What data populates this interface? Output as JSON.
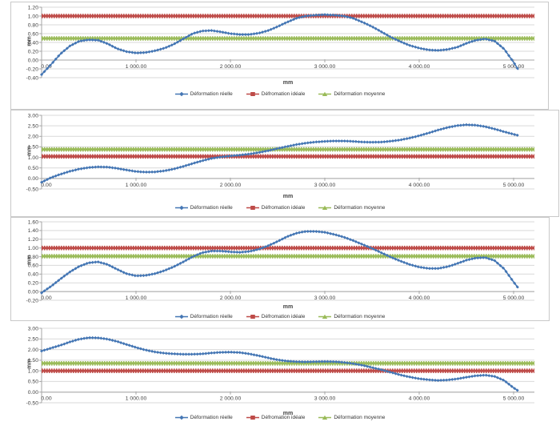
{
  "app": {
    "description": "Four stacked deformation line charts (réelle / idéale / moyenne) over a 0–5000 mm span"
  },
  "chart_data": [
    {
      "type": "line",
      "title": "",
      "xlabel": "mm",
      "ylabel": "mm",
      "grid": true,
      "legend_position": "bottom",
      "xlim": [
        0,
        5220
      ],
      "ylim": [
        -0.4,
        1.2
      ],
      "x_ticks": [
        "0.00",
        "1 000.00",
        "2 000.00",
        "3 000.00",
        "4 000.00",
        "5 000.00"
      ],
      "x_tick_values": [
        0,
        1000,
        2000,
        3000,
        4000,
        5000
      ],
      "y_ticks": [
        "1.20",
        "1.00",
        "0.80",
        "0.60",
        "0.40",
        "0.20",
        "0.00",
        "-0.20",
        "-0.40"
      ],
      "y_tick_values": [
        1.2,
        1.0,
        0.8,
        0.6,
        0.4,
        0.2,
        0.0,
        -0.2,
        -0.4
      ],
      "series": [
        {
          "name": "Déformation réelle",
          "kind": "curve",
          "color": "#4476b4",
          "x": [
            0,
            100,
            200,
            300,
            400,
            500,
            600,
            700,
            800,
            900,
            1000,
            1100,
            1200,
            1300,
            1400,
            1500,
            1600,
            1700,
            1800,
            1900,
            2000,
            2100,
            2200,
            2300,
            2400,
            2500,
            2600,
            2700,
            2800,
            2900,
            3000,
            3100,
            3200,
            3300,
            3400,
            3500,
            3600,
            3700,
            3800,
            3900,
            4000,
            4100,
            4200,
            4300,
            4400,
            4500,
            4600,
            4700,
            4800,
            4900,
            5000,
            5050
          ],
          "values": [
            -0.33,
            -0.1,
            0.14,
            0.32,
            0.43,
            0.46,
            0.45,
            0.37,
            0.26,
            0.19,
            0.16,
            0.17,
            0.21,
            0.27,
            0.36,
            0.48,
            0.6,
            0.66,
            0.67,
            0.64,
            0.6,
            0.58,
            0.58,
            0.61,
            0.67,
            0.76,
            0.86,
            0.95,
            1.0,
            1.02,
            1.03,
            1.02,
            1.0,
            0.95,
            0.86,
            0.76,
            0.64,
            0.52,
            0.42,
            0.33,
            0.27,
            0.23,
            0.22,
            0.24,
            0.29,
            0.38,
            0.45,
            0.48,
            0.43,
            0.25,
            -0.05,
            -0.22
          ]
        },
        {
          "name": "Défromation idéale",
          "kind": "hline",
          "color": "#be4b48",
          "value": 1.0
        },
        {
          "name": "Déformation moyenne",
          "kind": "hline",
          "color": "#9abb59",
          "value": 0.49
        }
      ]
    },
    {
      "type": "line",
      "title": "",
      "xlabel": "mm",
      "ylabel": "mm",
      "grid": true,
      "legend_position": "bottom",
      "xlim": [
        0,
        5220
      ],
      "ylim": [
        -0.5,
        3.0
      ],
      "x_ticks": [
        "0.00",
        "1 000.00",
        "2 000.00",
        "3 000.00",
        "4 000.00",
        "5 000.00"
      ],
      "x_tick_values": [
        0,
        1000,
        2000,
        3000,
        4000,
        5000
      ],
      "y_ticks": [
        "3.00",
        "2.50",
        "2.00",
        "1.50",
        "1.00",
        "0.50",
        "0.00",
        "-0.50"
      ],
      "y_tick_values": [
        3.0,
        2.5,
        2.0,
        1.5,
        1.0,
        0.5,
        0.0,
        -0.5
      ],
      "series": [
        {
          "name": "Déformation réelle",
          "kind": "curve",
          "color": "#4476b4",
          "x": [
            0,
            100,
            200,
            300,
            400,
            500,
            600,
            700,
            800,
            900,
            1000,
            1100,
            1200,
            1300,
            1400,
            1500,
            1600,
            1700,
            1800,
            1900,
            2000,
            2100,
            2200,
            2300,
            2400,
            2500,
            2600,
            2700,
            2800,
            2900,
            3000,
            3100,
            3200,
            3300,
            3400,
            3500,
            3600,
            3700,
            3800,
            3900,
            4000,
            4100,
            4200,
            4300,
            4400,
            4500,
            4600,
            4700,
            4800,
            4900,
            5000,
            5050
          ],
          "values": [
            -0.18,
            0.04,
            0.2,
            0.34,
            0.45,
            0.52,
            0.55,
            0.54,
            0.48,
            0.4,
            0.33,
            0.3,
            0.31,
            0.36,
            0.45,
            0.57,
            0.71,
            0.84,
            0.95,
            1.02,
            1.07,
            1.11,
            1.16,
            1.23,
            1.32,
            1.42,
            1.52,
            1.61,
            1.68,
            1.73,
            1.76,
            1.78,
            1.78,
            1.76,
            1.73,
            1.72,
            1.73,
            1.77,
            1.83,
            1.92,
            2.03,
            2.16,
            2.3,
            2.42,
            2.51,
            2.55,
            2.53,
            2.46,
            2.35,
            2.22,
            2.1,
            2.04
          ]
        },
        {
          "name": "Défromation idéale",
          "kind": "hline",
          "color": "#be4b48",
          "value": 1.05
        },
        {
          "name": "Déformation moyenne",
          "kind": "hline",
          "color": "#9abb59",
          "value": 1.38
        }
      ]
    },
    {
      "type": "line",
      "title": "",
      "xlabel": "mm",
      "ylabel": "mm",
      "grid": true,
      "legend_position": "bottom",
      "xlim": [
        0,
        5220
      ],
      "ylim": [
        -0.2,
        1.6
      ],
      "x_ticks": [
        "0.00",
        "1 000.00",
        "2 000.00",
        "3 000.00",
        "4 000.00",
        "5 000.00"
      ],
      "x_tick_values": [
        0,
        1000,
        2000,
        3000,
        4000,
        5000
      ],
      "y_ticks": [
        "1.60",
        "1.40",
        "1.20",
        "1.00",
        "0.80",
        "0.60",
        "0.40",
        "0.20",
        "0.00",
        "-0.20"
      ],
      "y_tick_values": [
        1.6,
        1.4,
        1.2,
        1.0,
        0.8,
        0.6,
        0.4,
        0.2,
        0.0,
        -0.2
      ],
      "series": [
        {
          "name": "Déformation réelle",
          "kind": "curve",
          "color": "#4476b4",
          "x": [
            0,
            100,
            200,
            300,
            400,
            500,
            600,
            700,
            800,
            900,
            1000,
            1100,
            1200,
            1300,
            1400,
            1500,
            1600,
            1700,
            1800,
            1900,
            2000,
            2100,
            2200,
            2300,
            2400,
            2500,
            2600,
            2700,
            2800,
            2900,
            3000,
            3100,
            3200,
            3300,
            3400,
            3500,
            3600,
            3700,
            3800,
            3900,
            4000,
            4100,
            4200,
            4300,
            4400,
            4500,
            4600,
            4700,
            4800,
            4900,
            5000,
            5050
          ],
          "values": [
            -0.03,
            0.12,
            0.29,
            0.45,
            0.58,
            0.66,
            0.68,
            0.62,
            0.51,
            0.41,
            0.36,
            0.37,
            0.41,
            0.48,
            0.57,
            0.68,
            0.8,
            0.89,
            0.93,
            0.93,
            0.91,
            0.9,
            0.92,
            0.97,
            1.05,
            1.15,
            1.26,
            1.34,
            1.38,
            1.38,
            1.36,
            1.31,
            1.25,
            1.17,
            1.08,
            0.99,
            0.89,
            0.79,
            0.7,
            0.62,
            0.56,
            0.53,
            0.53,
            0.57,
            0.64,
            0.72,
            0.77,
            0.78,
            0.71,
            0.52,
            0.22,
            0.08
          ]
        },
        {
          "name": "Défromation idéale",
          "kind": "hline",
          "color": "#be4b48",
          "value": 1.0
        },
        {
          "name": "Déformation moyenne",
          "kind": "hline",
          "color": "#9abb59",
          "value": 0.81
        }
      ]
    },
    {
      "type": "line",
      "title": "",
      "xlabel": "mm",
      "ylabel": "mm",
      "grid": true,
      "legend_position": "bottom",
      "xlim": [
        0,
        5220
      ],
      "ylim": [
        -0.5,
        3.0
      ],
      "x_ticks": [
        "0.00",
        "1 000.00",
        "2 000.00",
        "3 000.00",
        "4 000.00",
        "5 000.00"
      ],
      "x_tick_values": [
        0,
        1000,
        2000,
        3000,
        4000,
        5000
      ],
      "y_ticks": [
        "3.00",
        "2.50",
        "2.00",
        "1.50",
        "1.00",
        "0.50",
        "0.00",
        "-0.50"
      ],
      "y_tick_values": [
        3.0,
        2.5,
        2.0,
        1.5,
        1.0,
        0.5,
        0.0,
        -0.5
      ],
      "series": [
        {
          "name": "Déformation réelle",
          "kind": "curve",
          "color": "#4476b4",
          "x": [
            0,
            100,
            200,
            300,
            400,
            500,
            600,
            700,
            800,
            900,
            1000,
            1100,
            1200,
            1300,
            1400,
            1500,
            1600,
            1700,
            1800,
            1900,
            2000,
            2100,
            2200,
            2300,
            2400,
            2500,
            2600,
            2700,
            2800,
            2900,
            3000,
            3100,
            3200,
            3300,
            3400,
            3500,
            3600,
            3700,
            3800,
            3900,
            4000,
            4100,
            4200,
            4300,
            4400,
            4500,
            4600,
            4700,
            4800,
            4900,
            5000,
            5050
          ],
          "values": [
            1.93,
            2.07,
            2.2,
            2.36,
            2.49,
            2.56,
            2.55,
            2.49,
            2.38,
            2.24,
            2.1,
            1.98,
            1.89,
            1.83,
            1.8,
            1.78,
            1.78,
            1.8,
            1.84,
            1.87,
            1.88,
            1.86,
            1.8,
            1.71,
            1.61,
            1.52,
            1.46,
            1.43,
            1.42,
            1.43,
            1.44,
            1.43,
            1.4,
            1.34,
            1.26,
            1.16,
            1.05,
            0.93,
            0.81,
            0.71,
            0.63,
            0.58,
            0.55,
            0.57,
            0.62,
            0.7,
            0.77,
            0.8,
            0.74,
            0.55,
            0.2,
            0.06
          ]
        },
        {
          "name": "Défromation idéale",
          "kind": "hline",
          "color": "#be4b48",
          "value": 1.0
        },
        {
          "name": "Déformation moyenne",
          "kind": "hline",
          "color": "#9abb59",
          "value": 1.35
        }
      ]
    }
  ],
  "style_colors": {
    "series_blue": "#4476b4",
    "series_red": "#be4b48",
    "series_green": "#9abb59",
    "gridline": "#d9d9d9",
    "axis": "#a6a6a6",
    "text": "#3f3f3f"
  }
}
